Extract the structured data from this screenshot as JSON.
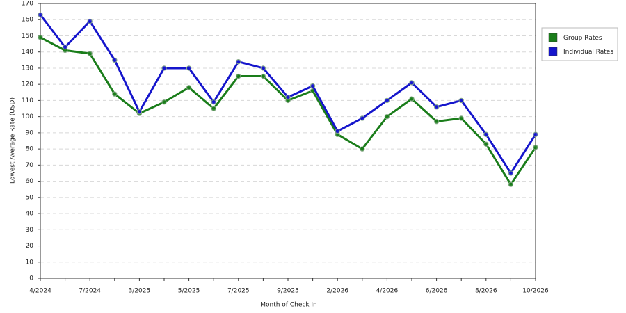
{
  "chart_data": {
    "type": "line",
    "x_label": "Month of Check In",
    "y_label": "Lowest Average Rate (USD)",
    "categories": [
      "4/2024",
      null,
      "7/2024",
      null,
      "3/2025",
      null,
      "5/2025",
      null,
      "7/2025",
      null,
      "9/2025",
      null,
      "2/2026",
      null,
      "4/2026",
      null,
      "6/2026",
      null,
      "8/2026",
      null,
      "10/2026"
    ],
    "series": [
      {
        "name": "Group Rates",
        "color": "#1a7d1a",
        "values": [
          149,
          141,
          139,
          114,
          102,
          109,
          118,
          105,
          125,
          125,
          110,
          116,
          89,
          80,
          100,
          111,
          97,
          99,
          83,
          58,
          81
        ]
      },
      {
        "name": "Individual Rates",
        "color": "#1515cc",
        "values": [
          163,
          143,
          159,
          135,
          103,
          130,
          130,
          109,
          134,
          130,
          112,
          119,
          91,
          99,
          110,
          121,
          106,
          110,
          89,
          65,
          89
        ]
      }
    ],
    "ylim": [
      0,
      170
    ],
    "yticks": [
      0,
      10,
      20,
      30,
      40,
      50,
      60,
      70,
      80,
      90,
      100,
      110,
      120,
      130,
      140,
      150,
      160,
      170
    ],
    "grid": true,
    "legend": "right"
  }
}
